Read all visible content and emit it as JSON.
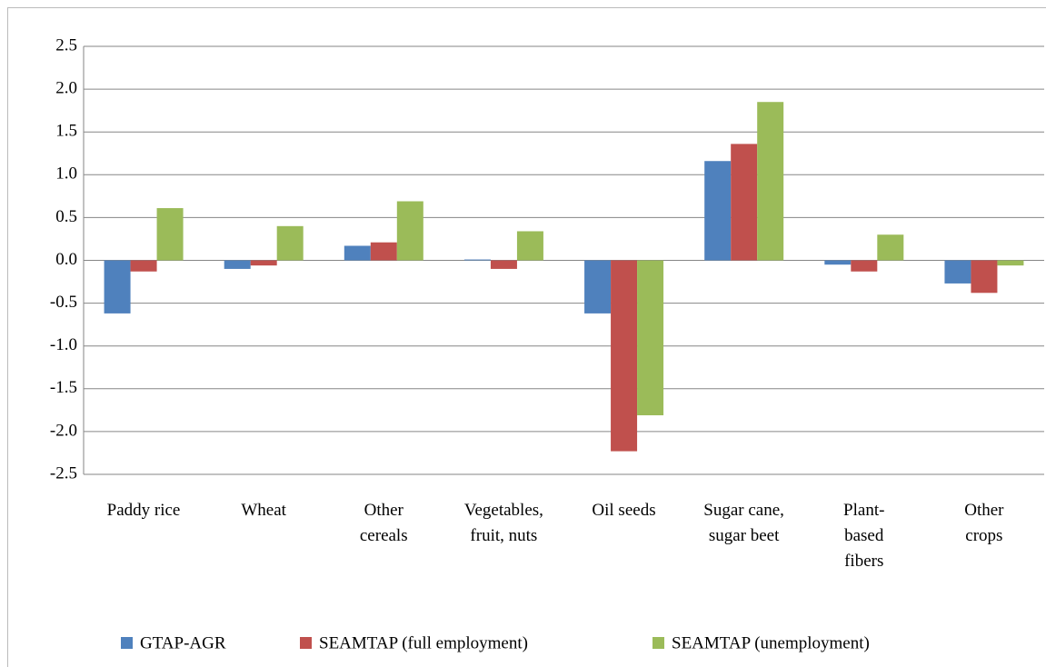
{
  "chart_data": {
    "type": "bar",
    "categories": [
      "Paddy rice",
      "Wheat",
      "Other\ncereals",
      "Vegetables,\nfruit, nuts",
      "Oil seeds",
      "Sugar cane,\nsugar beet",
      "Plant-\nbased\nfibers",
      "Other\ncrops"
    ],
    "series": [
      {
        "name": "GTAP-AGR",
        "color": "#4f81bd",
        "values": [
          -0.62,
          -0.1,
          0.17,
          0.01,
          -0.62,
          1.16,
          -0.05,
          -0.27
        ]
      },
      {
        "name": "SEAMTAP (full employment)",
        "color": "#c0504d",
        "values": [
          -0.13,
          -0.06,
          0.21,
          -0.1,
          -2.23,
          1.36,
          -0.13,
          -0.38
        ]
      },
      {
        "name": "SEAMTAP (unemployment)",
        "color": "#9bbb59",
        "values": [
          0.61,
          0.4,
          0.69,
          0.34,
          -1.81,
          1.85,
          0.3,
          -0.06
        ]
      }
    ],
    "ylim": [
      -2.5,
      2.5
    ],
    "yticks": [
      2.5,
      {
        "value": 2,
        "label": "2.0"
      },
      1.5,
      {
        "value": 1,
        "label": "1.0"
      },
      0.5,
      {
        "value": 0,
        "label": "0.0"
      },
      -0.5,
      {
        "value": -1,
        "label": "-1.0"
      },
      -1.5,
      {
        "value": -2,
        "label": "-2.0"
      },
      -2.5
    ],
    "grid": true,
    "legend": "bottom"
  }
}
